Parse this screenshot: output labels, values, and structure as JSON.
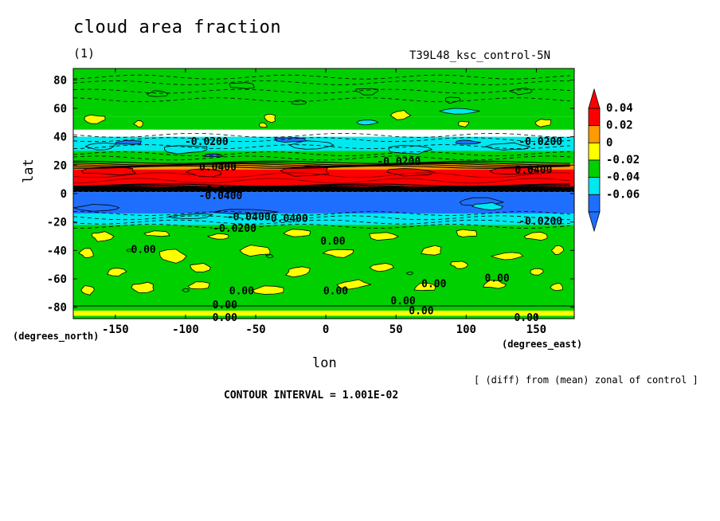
{
  "chart": {
    "title": "cloud area fraction",
    "panel_label": "(1)",
    "run_label": "T39L48_ksc_control-5N",
    "xlabel": "lon",
    "ylabel": "lat",
    "x_unit": "(degrees_east)",
    "y_unit": "(degrees_north)",
    "note": "[ (diff) from (mean) zonal of control ]",
    "contour_interval": "CONTOUR INTERVAL = 1.001E-02"
  },
  "chart_data": {
    "type": "heatmap",
    "title": "cloud area fraction",
    "xlabel": "lon",
    "ylabel": "lat",
    "xlim": [
      -180,
      177
    ],
    "ylim": [
      -88,
      88
    ],
    "x_ticks": [
      -150,
      -100,
      -50,
      0,
      50,
      100,
      150
    ],
    "x_tick_labels": [
      "-150",
      "-100",
      "-50",
      "0",
      "50",
      "100",
      "150"
    ],
    "y_ticks": [
      -80,
      -60,
      -40,
      -20,
      0,
      20,
      40,
      60,
      80
    ],
    "y_tick_labels": [
      "-80",
      "-60",
      "-40",
      "-20",
      "0",
      "20",
      "40",
      "60",
      "80"
    ],
    "colorbar": {
      "levels": [
        -0.06,
        -0.04,
        -0.02,
        0,
        0.02,
        0.04
      ],
      "labels": [
        "-0.06",
        "-0.04",
        "-0.02",
        "0",
        "0.02",
        "0.04"
      ],
      "colors": [
        "#1f6fff",
        "#00e8f0",
        "#00d000",
        "#ffff00",
        "#ff9a00",
        "#ff0000"
      ]
    },
    "bands": [
      {
        "lat_from": 88,
        "lat_to": 54,
        "color": "#00d000"
      },
      {
        "lat_from": 54,
        "lat_to": 45,
        "color": "#00d000"
      },
      {
        "lat_from": 40,
        "lat_to": 30,
        "color": "#00e8f0"
      },
      {
        "lat_from": 30,
        "lat_to": 21,
        "color": "#00d000"
      },
      {
        "lat_from": 21,
        "lat_to": 17,
        "color": "#ff9a00"
      },
      {
        "lat_from": 17,
        "lat_to": 5,
        "color": "#ff0000"
      },
      {
        "lat_from": 5,
        "lat_to": 1,
        "color": "#000000"
      },
      {
        "lat_from": 1,
        "lat_to": -14,
        "color": "#1f6fff"
      },
      {
        "lat_from": -14,
        "lat_to": -22,
        "color": "#00e8f0"
      },
      {
        "lat_from": -22,
        "lat_to": -88,
        "color": "#00d000"
      }
    ],
    "contour_labels": [
      {
        "text": "-0.0200",
        "lon": -85,
        "lat": 37
      },
      {
        "text": "-0.0200",
        "lon": 52,
        "lat": 23
      },
      {
        "text": "-0.0200",
        "lon": 153,
        "lat": 37
      },
      {
        "text": "-0.0200",
        "lon": 153,
        "lat": -19
      },
      {
        "text": "-0.0200",
        "lon": -65,
        "lat": -24
      },
      {
        "text": "0.0400",
        "lon": -77,
        "lat": 19
      },
      {
        "text": "0.0400",
        "lon": 148,
        "lat": 17
      },
      {
        "text": "0.0400",
        "lon": -72,
        "lat": 3
      },
      {
        "text": "-0.0400",
        "lon": -55,
        "lat": -16
      },
      {
        "text": "0.0400",
        "lon": -26,
        "lat": -17
      },
      {
        "text": "-0.0400",
        "lon": -75,
        "lat": -1
      },
      {
        "text": "0.00",
        "lon": -130,
        "lat": -39
      },
      {
        "text": "0.00",
        "lon": 5,
        "lat": -33
      },
      {
        "text": "0.00",
        "lon": -60,
        "lat": -68
      },
      {
        "text": "0.00",
        "lon": 7,
        "lat": -68
      },
      {
        "text": "0.00",
        "lon": 77,
        "lat": -63
      },
      {
        "text": "0.00",
        "lon": 122,
        "lat": -59
      },
      {
        "text": "0.00",
        "lon": 55,
        "lat": -75
      },
      {
        "text": "0.00",
        "lon": -72,
        "lat": -78
      },
      {
        "text": "0.00",
        "lon": 68,
        "lat": -82
      },
      {
        "text": "0.00",
        "lon": -72,
        "lat": -87
      },
      {
        "text": "0.00",
        "lon": 143,
        "lat": -87
      }
    ]
  }
}
